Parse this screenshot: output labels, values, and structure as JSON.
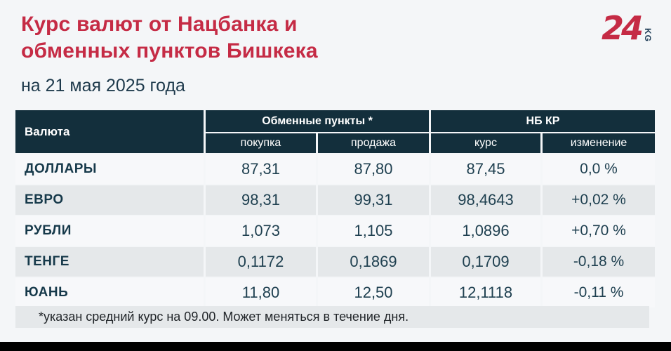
{
  "header": {
    "title_line1": "Курс валют от Нацбанка и",
    "title_line2": "обменных пунктов Бишкека",
    "subtitle": "на 21 мая 2025 года",
    "logo_number": "24",
    "logo_suffix": "KG"
  },
  "table": {
    "col_currency": "Валюта",
    "group_exchange": "Обменные пункты *",
    "group_nbkr": "НБ КР",
    "sub_buy": "покупка",
    "sub_sell": "продажа",
    "sub_rate": "курс",
    "sub_change": "изменение",
    "rows": [
      {
        "currency": "ДОЛЛАРЫ",
        "buy": "87,31",
        "sell": "87,80",
        "rate": "87,45",
        "change": "0,0 %"
      },
      {
        "currency": "ЕВРО",
        "buy": "98,31",
        "sell": "99,31",
        "rate": "98,4643",
        "change": "+0,02 %"
      },
      {
        "currency": "РУБЛИ",
        "buy": "1,073",
        "sell": "1,105",
        "rate": "1,0896",
        "change": "+0,70 %"
      },
      {
        "currency": "ТЕНГЕ",
        "buy": "0,1172",
        "sell": "0,1869",
        "rate": "0,1709",
        "change": "-0,18 %"
      },
      {
        "currency": "ЮАНЬ",
        "buy": "11,80",
        "sell": "12,50",
        "rate": "12,1118",
        "change": "-0,11 %"
      }
    ],
    "footnote": "*указан средний курс на 09.00. Может меняться в течение дня."
  },
  "chart_data": {
    "type": "table",
    "title": "Курс валют от Нацбанка и обменных пунктов Бишкека",
    "subtitle": "на 21 мая 2025 года",
    "column_groups": [
      "Валюта",
      "Обменные пункты *",
      "НБ КР"
    ],
    "columns": [
      "Валюта",
      "покупка",
      "продажа",
      "курс",
      "изменение"
    ],
    "rows": [
      [
        "ДОЛЛАРЫ",
        "87,31",
        "87,80",
        "87,45",
        "0,0 %"
      ],
      [
        "ЕВРО",
        "98,31",
        "99,31",
        "98,4643",
        "+0,02 %"
      ],
      [
        "РУБЛИ",
        "1,073",
        "1,105",
        "1,0896",
        "+0,70 %"
      ],
      [
        "ТЕНГЕ",
        "0,1172",
        "0,1869",
        "0,1709",
        "-0,18 %"
      ],
      [
        "ЮАНЬ",
        "11,80",
        "12,50",
        "12,1118",
        "-0,11 %"
      ]
    ],
    "footnote": "*указан средний курс на 09.00. Может меняться в течение дня."
  },
  "colors": {
    "background": "#f4f6f8",
    "accent_red": "#c52b45",
    "header_dark_teal": "#132f3c",
    "row_light": "#f7f8fa",
    "row_gray": "#e5e8ea",
    "text_dark_teal": "#1f4050",
    "logo_kg_blue": "#1d3b55"
  }
}
